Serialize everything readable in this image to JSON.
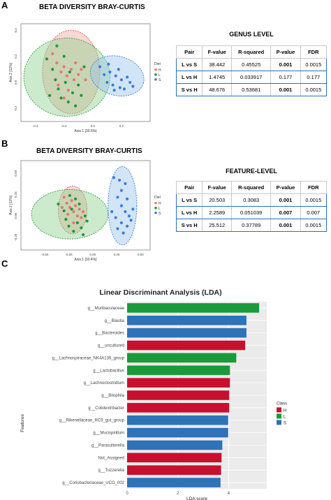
{
  "panelA": {
    "letter": "A",
    "title": "BETA DIVERSITY BRAY-CURTIS",
    "xlabel": "Axis.1   [30.5%]",
    "ylabel": "Axis.2   [12%]",
    "xticks": [
      "-0.4",
      "-0.2",
      "0.0",
      "0.2"
    ],
    "yticks": [
      "0.4",
      "0.2",
      "0.0",
      "-0.2"
    ],
    "legend": {
      "title": "Diet",
      "items": [
        "H",
        "L",
        "S"
      ]
    },
    "table": {
      "title": "GENUS  LEVEL",
      "headers": [
        "Pair",
        "F-value",
        "R-squared",
        "P-value",
        "FDR"
      ],
      "rows": [
        [
          "L vs S",
          "38.442",
          "0.45525",
          "0.001",
          "0.0015"
        ],
        [
          "L vs H",
          "1.4745",
          "0.033917",
          "0.177",
          "0.177"
        ],
        [
          "S vs H",
          "48.676",
          "0.53681",
          "0.001",
          "0.0015"
        ]
      ]
    }
  },
  "panelB": {
    "letter": "B",
    "title": "BETA DIVERSITY BRAY-CURTIS",
    "xlabel": "Axis.1   [30.4%]",
    "ylabel": "Axis.2   [12%]",
    "xticks": [
      "-0.50",
      "-0.25",
      "0.00",
      "0.25",
      "0.50"
    ],
    "yticks": [
      "0.50",
      "0.25",
      "0.00",
      "-0.25"
    ],
    "legend": {
      "title": "Diet",
      "items": [
        "H",
        "L",
        "S"
      ]
    },
    "table": {
      "title": "FEATURE-LEVEL",
      "headers": [
        "Pair",
        "F-value",
        "R-squared",
        "P-value",
        "FDR"
      ],
      "rows": [
        [
          "L vs S",
          "20.503",
          "0.3083",
          "0.001",
          "0.0015"
        ],
        [
          "L vs H",
          "2.2589",
          "0.051039",
          "0.007",
          "0.007"
        ],
        [
          "S vs H",
          "25.512",
          "0.37789",
          "0.001",
          "0.0015"
        ]
      ]
    }
  },
  "panelC": {
    "letter": "C"
  },
  "colors": {
    "H": "#c8102e",
    "L": "#1a9a3a",
    "S": "#2e72b8",
    "H_scatter": "#e07a70",
    "S_scatter": "#3a7fd0"
  },
  "chart_data": [
    {
      "type": "scatter",
      "title": "BETA DIVERSITY BRAY-CURTIS",
      "xlabel": "Axis.1   [30.5%]",
      "ylabel": "Axis.2   [12%]",
      "xlim": [
        -0.5,
        0.4
      ],
      "ylim": [
        -0.3,
        0.45
      ],
      "series": [
        {
          "name": "H",
          "points": [
            [
              -0.28,
              0.22
            ],
            [
              -0.25,
              0.15
            ],
            [
              -0.22,
              0.08
            ],
            [
              -0.2,
              0.12
            ],
            [
              -0.18,
              0.05
            ],
            [
              -0.15,
              0.1
            ],
            [
              -0.13,
              0.02
            ],
            [
              -0.1,
              0.06
            ],
            [
              -0.24,
              -0.02
            ],
            [
              -0.17,
              -0.06
            ],
            [
              -0.12,
              0.15
            ],
            [
              -0.08,
              0.1
            ],
            [
              -0.2,
              -0.12
            ],
            [
              -0.05,
              0.02
            ]
          ]
        },
        {
          "name": "L",
          "points": [
            [
              -0.32,
              0.18
            ],
            [
              -0.28,
              0.1
            ],
            [
              -0.26,
              0.02
            ],
            [
              -0.24,
              -0.05
            ],
            [
              -0.22,
              -0.12
            ],
            [
              -0.2,
              0.2
            ],
            [
              -0.19,
              0.0
            ],
            [
              -0.17,
              -0.15
            ],
            [
              -0.16,
              0.08
            ],
            [
              -0.14,
              -0.08
            ],
            [
              -0.12,
              -0.18
            ],
            [
              -0.1,
              -0.02
            ],
            [
              -0.25,
              0.28
            ],
            [
              -0.3,
              -0.1
            ],
            [
              -0.08,
              -0.1
            ],
            [
              -0.06,
              0.12
            ]
          ]
        },
        {
          "name": "S",
          "points": [
            [
              0.05,
              0.12
            ],
            [
              0.08,
              0.06
            ],
            [
              0.1,
              0.0
            ],
            [
              0.12,
              0.08
            ],
            [
              0.14,
              -0.02
            ],
            [
              0.16,
              0.05
            ],
            [
              0.18,
              0.1
            ],
            [
              0.2,
              0.02
            ],
            [
              0.22,
              -0.05
            ],
            [
              0.24,
              0.04
            ],
            [
              0.26,
              0.0
            ],
            [
              0.28,
              -0.03
            ],
            [
              0.11,
              0.14
            ],
            [
              0.15,
              -0.06
            ],
            [
              0.19,
              -0.04
            ]
          ]
        }
      ]
    },
    {
      "type": "scatter",
      "title": "BETA DIVERSITY BRAY-CURTIS",
      "xlabel": "Axis.1   [30.4%]",
      "ylabel": "Axis.2   [12%]",
      "xlim": [
        -0.75,
        0.6
      ],
      "ylim": [
        -0.4,
        0.65
      ],
      "series": [
        {
          "name": "H",
          "points": [
            [
              -0.3,
              0.22
            ],
            [
              -0.27,
              0.15
            ],
            [
              -0.24,
              0.1
            ],
            [
              -0.22,
              0.18
            ],
            [
              -0.2,
              0.05
            ],
            [
              -0.18,
              0.12
            ],
            [
              -0.16,
              0.0
            ],
            [
              -0.14,
              0.08
            ],
            [
              -0.12,
              -0.02
            ],
            [
              -0.26,
              0.02
            ],
            [
              -0.2,
              -0.08
            ],
            [
              -0.1,
              0.05
            ],
            [
              -0.32,
              0.1
            ]
          ]
        },
        {
          "name": "L",
          "points": [
            [
              -0.36,
              0.14
            ],
            [
              -0.3,
              0.06
            ],
            [
              -0.28,
              -0.04
            ],
            [
              -0.25,
              -0.12
            ],
            [
              -0.22,
              0.08
            ],
            [
              -0.2,
              -0.18
            ],
            [
              -0.18,
              0.2
            ],
            [
              -0.16,
              -0.08
            ],
            [
              -0.14,
              0.14
            ],
            [
              -0.12,
              -0.14
            ],
            [
              -0.1,
              -0.22
            ],
            [
              -0.08,
              0.0
            ],
            [
              -0.24,
              0.24
            ],
            [
              -0.06,
              -0.06
            ]
          ]
        },
        {
          "name": "S",
          "points": [
            [
              0.22,
              0.45
            ],
            [
              0.28,
              0.42
            ],
            [
              0.3,
              0.3
            ],
            [
              0.34,
              0.38
            ],
            [
              0.26,
              0.22
            ],
            [
              0.3,
              0.12
            ],
            [
              0.34,
              0.05
            ],
            [
              0.38,
              0.0
            ],
            [
              0.24,
              -0.02
            ],
            [
              0.3,
              -0.08
            ],
            [
              0.36,
              -0.12
            ],
            [
              0.4,
              -0.05
            ],
            [
              0.32,
              -0.2
            ],
            [
              0.26,
              -0.15
            ],
            [
              0.42,
              0.08
            ],
            [
              0.2,
              0.05
            ],
            [
              0.36,
              0.2
            ]
          ]
        }
      ]
    },
    {
      "type": "bar",
      "orientation": "horizontal",
      "title": "Linear Discriminant Analysis (LDA)",
      "xlabel": "LDA score",
      "ylabel": "Features",
      "xlim": [
        0,
        5.5
      ],
      "xticks": [
        0,
        2,
        4
      ],
      "categories": [
        "g__Muribaculaceae",
        "g__Blautia",
        "g__Bacteroides",
        "g__uncultured",
        "g__Lachnospiraceae_NK4A136_group",
        "g__Lactobacillus",
        "g__Lachnoclostridium",
        "g__Bilophila",
        "g__Colidextribacter",
        "g__Rikenellaceae_RC9_gut_group",
        "g__Mucispirillum",
        "g__Parasutterella",
        "Not_Assigned",
        "g__Tuzzerella",
        "g__Coriobacteriaceae_UCG_002"
      ],
      "values": [
        5.2,
        4.7,
        4.7,
        4.65,
        4.3,
        4.05,
        4.05,
        4.02,
        4.02,
        3.98,
        3.98,
        3.75,
        3.72,
        3.7,
        3.68
      ],
      "class": [
        "L",
        "S",
        "S",
        "H",
        "L",
        "L",
        "H",
        "H",
        "H",
        "S",
        "S",
        "S",
        "H",
        "H",
        "S"
      ],
      "legend": {
        "title": "Class",
        "items": [
          "H",
          "L",
          "S"
        ]
      }
    }
  ]
}
